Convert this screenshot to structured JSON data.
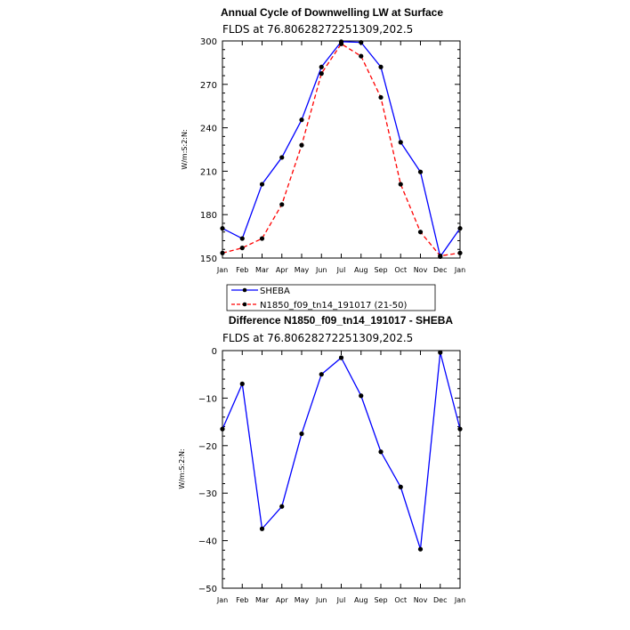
{
  "chart_data": [
    {
      "type": "line",
      "title": "Annual Cycle of Downwelling LW at Surface",
      "subtitle": "FLDS at 76.80628272251309,202.5",
      "ylabel": "W/m:S:2:N:",
      "xlabel": "",
      "categories": [
        "Jan",
        "Feb",
        "Mar",
        "Apr",
        "May",
        "Jun",
        "Jul",
        "Aug",
        "Sep",
        "Oct",
        "Nov",
        "Dec",
        "Jan"
      ],
      "ylim": [
        150,
        300
      ],
      "yticks": [
        150,
        180,
        210,
        240,
        270,
        300
      ],
      "ytick_labels": [
        "150",
        "180",
        "210",
        "240",
        "270",
        "300"
      ],
      "series": [
        {
          "name": "SHEBA",
          "color": "#0000ff",
          "dash": "solid",
          "values": [
            170.5,
            163.5,
            201,
            219.5,
            245.5,
            282,
            299.5,
            299,
            282,
            230,
            209.5,
            151,
            170.5
          ]
        },
        {
          "name": "N1850_f09_tn14_191017 (21-50)",
          "color": "#ff0000",
          "dash": "dashed",
          "values": [
            153.5,
            157,
            163.5,
            187,
            228,
            277.5,
            298,
            289.5,
            261,
            201,
            168,
            151.5,
            153.5
          ]
        }
      ],
      "legend": {
        "placement": "below"
      }
    },
    {
      "type": "line",
      "title": "Difference N1850_f09_tn14_191017 - SHEBA",
      "subtitle": "FLDS at 76.80628272251309,202.5",
      "ylabel": "W/m:S:2:N:",
      "xlabel": "",
      "categories": [
        "Jan",
        "Feb",
        "Mar",
        "Apr",
        "May",
        "Jun",
        "Jul",
        "Aug",
        "Sep",
        "Oct",
        "Nov",
        "Dec",
        "Jan"
      ],
      "ylim": [
        -50,
        0
      ],
      "yticks": [
        -50,
        -40,
        -30,
        -20,
        -10,
        0
      ],
      "ytick_labels": [
        "−50",
        "−40",
        "−30",
        "−20",
        "−10",
        "0"
      ],
      "series": [
        {
          "name": "",
          "color": "#0000ff",
          "dash": "solid",
          "values": [
            -16.5,
            -7,
            -37.5,
            -32.8,
            -17.5,
            -5,
            -1.5,
            -9.5,
            -21.3,
            -28.7,
            -41.8,
            -0.4,
            -16.5
          ]
        }
      ]
    }
  ]
}
